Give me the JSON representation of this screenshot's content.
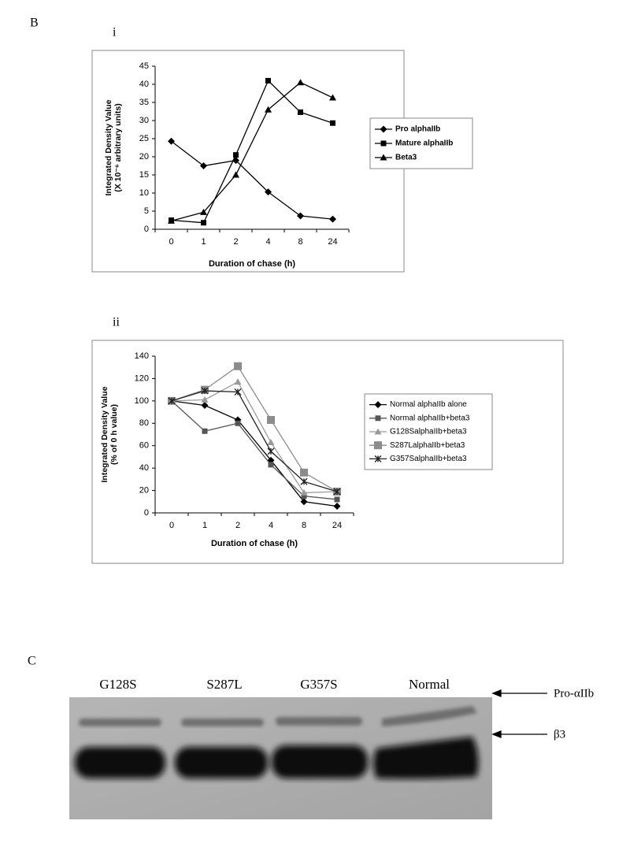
{
  "panels": {
    "b": "B",
    "b_i": "i",
    "b_ii": "ii",
    "c": "C"
  },
  "chart_data": [
    {
      "type": "line",
      "xlabel": "Duration of chase (h)",
      "ylabel_lines": [
        "Integrated Density Value",
        "(X 10⁻⁶ arbitrary units)"
      ],
      "categories": [
        "0",
        "1",
        "2",
        "4",
        "8",
        "24"
      ],
      "ylim": [
        0,
        45
      ],
      "yticks": [
        0,
        5,
        10,
        15,
        20,
        25,
        30,
        35,
        40,
        45
      ],
      "grid": false,
      "legend": "right",
      "series": [
        {
          "name": "Pro alphaIIb",
          "color": "#000000",
          "marker": "diamond",
          "values": [
            24.3,
            17.5,
            19,
            10.3,
            3.7,
            2.8
          ]
        },
        {
          "name": "Mature alphaIIb",
          "color": "#000000",
          "marker": "square",
          "values": [
            2.5,
            1.8,
            20.5,
            41,
            32.3,
            29.3
          ]
        },
        {
          "name": "Beta3",
          "color": "#000000",
          "marker": "triangle",
          "values": [
            2.3,
            4.7,
            15,
            33,
            40.5,
            36.3
          ]
        }
      ]
    },
    {
      "type": "line",
      "xlabel": "Duration of chase (h)",
      "ylabel_lines": [
        "Integrated Density Value",
        "(% of 0 h value)"
      ],
      "categories": [
        "0",
        "1",
        "2",
        "4",
        "8",
        "24"
      ],
      "ylim": [
        0,
        140
      ],
      "yticks": [
        0,
        20,
        40,
        60,
        80,
        100,
        120,
        140
      ],
      "grid": false,
      "legend": "right",
      "series": [
        {
          "name": "Normal alphaIIb alone",
          "color": "#000000",
          "marker": "diamond",
          "values": [
            100,
            96,
            83,
            47,
            10,
            6
          ]
        },
        {
          "name": "Normal alphaIIb+beta3",
          "color": "#555555",
          "marker": "square",
          "values": [
            100,
            73,
            80,
            43,
            15,
            12
          ]
        },
        {
          "name": "G128SalphaIIb+beta3",
          "color": "#9a9a9a",
          "marker": "triangle",
          "values": [
            100,
            101,
            117,
            63,
            18,
            19
          ]
        },
        {
          "name": "S287LalphaIIb+beta3",
          "color": "#8c8c8c",
          "marker": "bigsquare",
          "values": [
            100,
            110,
            131,
            83,
            36,
            19
          ]
        },
        {
          "name": "G357SalphaIIb+beta3",
          "color": "#222222",
          "marker": "star",
          "values": [
            100,
            109,
            108,
            55,
            28,
            19
          ]
        }
      ]
    }
  ],
  "gel": {
    "lanes": [
      "G128S",
      "S287L",
      "G357S",
      "Normal"
    ],
    "bands": [
      "Pro-αIIb",
      "β3"
    ]
  }
}
